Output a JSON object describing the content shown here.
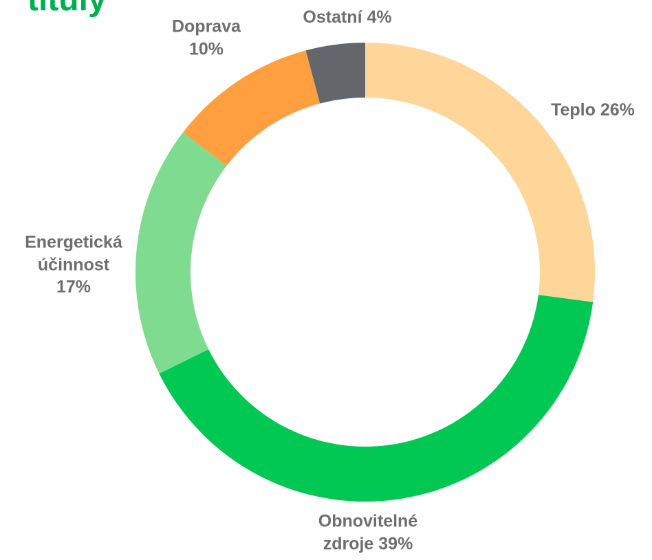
{
  "chart_data": {
    "type": "donut",
    "title": "tituly",
    "categories": [
      "Teplo",
      "Obnovitelné zdroje",
      "Energetická účinnost",
      "Doprava",
      "Ostatní"
    ],
    "values": [
      26,
      39,
      17,
      10,
      4
    ],
    "value_labels": [
      "26%",
      "39%",
      "17%",
      "10%",
      "4%"
    ],
    "colors": [
      "#FFD699",
      "#00C853",
      "#7FDB8F",
      "#FF9F40",
      "#63666A"
    ]
  }
}
